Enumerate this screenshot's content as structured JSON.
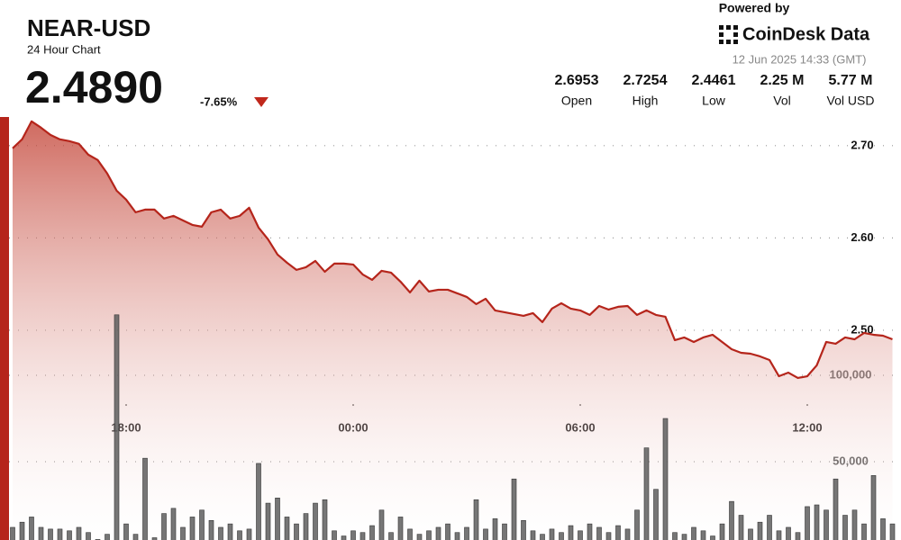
{
  "header": {
    "price": "2.4890",
    "change": "-7.65%",
    "powered_by": "Powered by",
    "brand": "CoinDesk Data",
    "timestamp": "12 Jun 2025 14:33 (GMT)"
  },
  "stats": [
    {
      "value": "2.6953",
      "label": "Open"
    },
    {
      "value": "2.7254",
      "label": "High"
    },
    {
      "value": "2.4461",
      "label": "Low"
    },
    {
      "value": "2.25 M",
      "label": "Vol"
    },
    {
      "value": "5.77 M",
      "label": "Vol USD"
    }
  ],
  "chart_data": {
    "type": "line",
    "title": "NEAR-USD",
    "subtitle": "24 Hour Chart",
    "categories": [
      null,
      null,
      null,
      null,
      null,
      null,
      null,
      null,
      null,
      null,
      null,
      null,
      "18:00",
      null,
      null,
      null,
      null,
      null,
      null,
      null,
      null,
      null,
      null,
      null,
      null,
      null,
      null,
      null,
      null,
      null,
      null,
      null,
      null,
      null,
      null,
      null,
      "00:00",
      null,
      null,
      null,
      null,
      null,
      null,
      null,
      null,
      null,
      null,
      null,
      null,
      null,
      null,
      null,
      null,
      null,
      null,
      null,
      null,
      null,
      null,
      null,
      "06:00",
      null,
      null,
      null,
      null,
      null,
      null,
      null,
      null,
      null,
      null,
      null,
      null,
      null,
      null,
      null,
      null,
      null,
      null,
      null,
      null,
      null,
      null,
      null,
      "12:00",
      null,
      null,
      null,
      null,
      null,
      null,
      null,
      null,
      null
    ],
    "series": [
      {
        "type": "line",
        "color": "#b5251b",
        "values": [
          2.6971,
          2.7068,
          2.7263,
          2.7195,
          2.7117,
          2.7068,
          2.7049,
          2.702,
          2.6902,
          2.6844,
          2.6698,
          2.6512,
          2.6415,
          2.6278,
          2.6307,
          2.6307,
          2.621,
          2.6239,
          2.619,
          2.6141,
          2.6122,
          2.6278,
          2.6307,
          2.621,
          2.6239,
          2.6327,
          2.6112,
          2.5985,
          2.582,
          2.5732,
          2.5654,
          2.5683,
          2.5751,
          2.5634,
          2.5722,
          2.5722,
          2.5712,
          2.5605,
          2.5546,
          2.5644,
          2.5624,
          2.5527,
          2.541,
          2.5537,
          2.542,
          2.5439,
          2.5439,
          2.54,
          2.5361,
          2.5283,
          2.5341,
          2.5215,
          2.5195,
          2.5176,
          2.5156,
          2.5185,
          2.5088,
          2.5234,
          2.5293,
          2.5234,
          2.5215,
          2.5166,
          2.5263,
          2.5224,
          2.5254,
          2.5263,
          2.5166,
          2.5215,
          2.5166,
          2.5146,
          2.4893,
          2.4922,
          2.4873,
          2.4922,
          2.4951,
          2.4873,
          2.4795,
          2.4756,
          2.4746,
          2.4717,
          2.4678,
          2.4502,
          2.4541,
          2.4483,
          2.4502,
          2.462,
          2.4873,
          2.4854,
          2.4922,
          2.4902,
          2.4971,
          2.4951,
          2.4941,
          2.4902
        ]
      },
      {
        "type": "bar",
        "axis": "y2",
        "color": "#5e5e5e",
        "values": [
          12000,
          15000,
          18000,
          12000,
          11000,
          11000,
          10000,
          12000,
          9000,
          5000,
          8000,
          135000,
          14000,
          8000,
          52000,
          6000,
          20000,
          23000,
          12000,
          18000,
          22000,
          16000,
          12000,
          14000,
          10000,
          11000,
          49000,
          26000,
          29000,
          18000,
          14000,
          20000,
          26000,
          28000,
          10000,
          7000,
          10000,
          9000,
          13000,
          22000,
          9000,
          18000,
          11000,
          8000,
          10000,
          12000,
          14000,
          9000,
          12000,
          28000,
          11000,
          17000,
          14000,
          40000,
          16000,
          10000,
          8000,
          11000,
          9000,
          13000,
          10000,
          14000,
          12000,
          9000,
          13000,
          11000,
          22000,
          58000,
          34000,
          75000,
          9000,
          8000,
          12000,
          10000,
          7000,
          14000,
          27000,
          19000,
          11000,
          15000,
          19000,
          10000,
          12000,
          9000,
          24000,
          25000,
          22000,
          40000,
          19000,
          22000,
          14000,
          42000,
          17000,
          14000
        ]
      }
    ],
    "ylim": [
      2.264,
      2.732
    ],
    "yticks": [
      {
        "value": 2.5,
        "label": "2.50"
      },
      {
        "value": 2.6,
        "label": "2.60"
      },
      {
        "value": 2.7,
        "label": "2.70"
      }
    ],
    "y2lim": [
      0,
      250000
    ],
    "y2ticks": [
      {
        "value": 50000,
        "label": "50,000"
      },
      {
        "value": 100000,
        "label": "100,000"
      }
    ],
    "grid": true
  }
}
